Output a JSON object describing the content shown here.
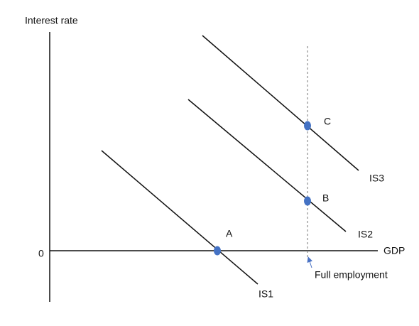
{
  "axes": {
    "y_label": "Interest rate",
    "origin": "0",
    "x_label": "GDP"
  },
  "curves": [
    {
      "label": "IS1"
    },
    {
      "label": "IS2"
    },
    {
      "label": "IS3"
    }
  ],
  "points": [
    {
      "label": "A"
    },
    {
      "label": "B"
    },
    {
      "label": "C"
    }
  ],
  "annotation": "Full employment"
}
